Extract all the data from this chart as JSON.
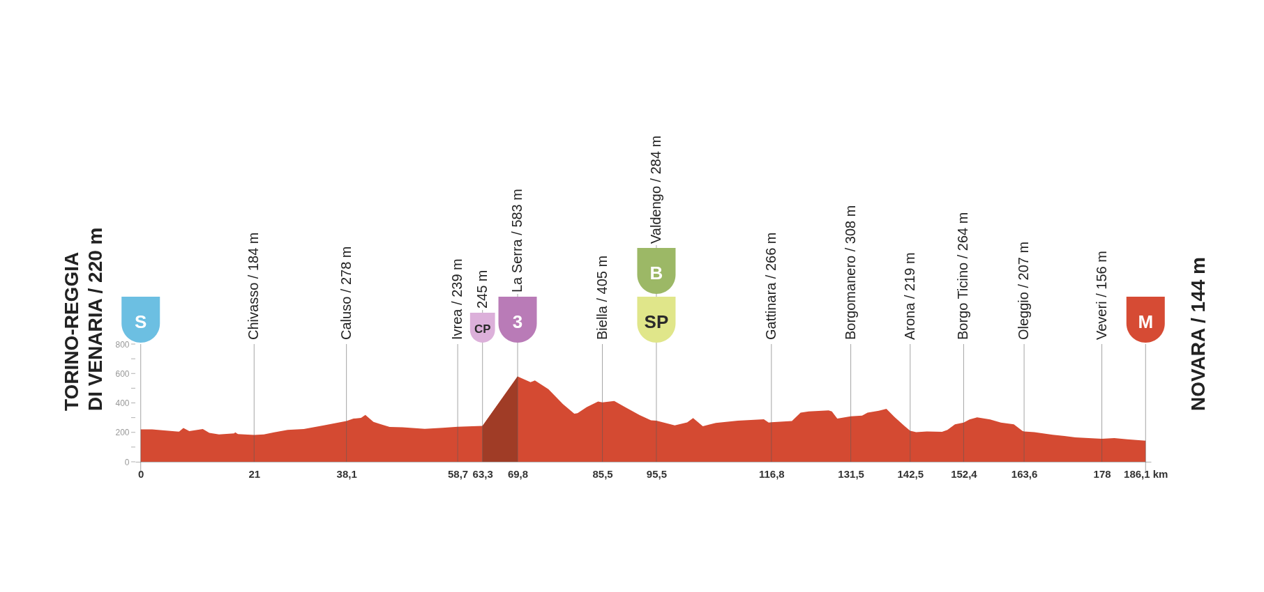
{
  "chart_data": {
    "type": "area",
    "x": [
      0,
      2.1,
      7.1,
      7.9,
      9.0,
      11.5,
      12.7,
      14.5,
      17.3,
      17.5,
      18.0,
      21,
      22.8,
      24.7,
      27.2,
      30.2,
      33.9,
      38.1,
      39.4,
      40.8,
      41.6,
      43.1,
      44.5,
      46.1,
      48.5,
      52.6,
      55.9,
      58.7,
      63.3,
      69.8,
      72.2,
      73.0,
      75.5,
      78.2,
      80.3,
      80.9,
      82.6,
      84.7,
      85.5,
      87.7,
      89.7,
      92.4,
      94.5,
      95.5,
      98.9,
      101.2,
      102.3,
      104.1,
      106.5,
      110.6,
      115.4,
      116.3,
      116.8,
      120.6,
      122.2,
      123.7,
      127.4,
      128.0,
      129.0,
      131.5,
      133.6,
      134.6,
      136.7,
      138.1,
      139.6,
      141.5,
      142.5,
      143.6,
      145.6,
      148.4,
      149.4,
      150.8,
      152.4,
      153.5,
      154.9,
      157.3,
      159.3,
      161.7,
      163.3,
      163.6,
      165.5,
      168.9,
      173.1,
      178,
      180.3,
      182.7,
      186.1
    ],
    "series": [
      {
        "color": "#d44a32",
        "values": [
          220,
          220,
          205,
          230,
          208,
          222,
          196,
          186,
          193,
          200,
          188,
          182,
          186,
          200,
          217,
          222,
          247,
          277,
          293,
          298,
          318,
          271,
          254,
          237,
          234,
          224,
          231,
          238,
          244,
          580,
          541,
          553,
          493,
          392,
          327,
          330,
          372,
          410,
          403,
          413,
          372,
          317,
          282,
          279,
          247,
          267,
          297,
          241,
          264,
          279,
          289,
          266,
          269,
          277,
          334,
          342,
          349,
          342,
          294,
          309,
          314,
          334,
          347,
          360,
          304,
          241,
          211,
          201,
          206,
          204,
          216,
          254,
          266,
          287,
          302,
          287,
          266,
          254,
          209,
          206,
          201,
          184,
          166,
          156,
          161,
          153,
          143
        ]
      },
      {
        "color": "#a03c26",
        "x": [
          63.3,
          69.8
        ],
        "values": [
          244,
          580
        ]
      }
    ],
    "xlim": [
      -1,
      187.1
    ],
    "xticks": [
      0,
      21,
      {
        "value": 38.1,
        "label": "38,1"
      },
      {
        "value": 58.7,
        "label": "58,7"
      },
      {
        "value": 63.3,
        "label": "63,3"
      },
      {
        "value": 69.8,
        "label": "69,8"
      },
      {
        "value": 85.5,
        "label": "85,5"
      },
      {
        "value": 95.5,
        "label": "95,5"
      },
      {
        "value": 116.8,
        "label": "116,8"
      },
      {
        "value": 131.5,
        "label": "131,5"
      },
      {
        "value": 142.5,
        "label": "142,5"
      },
      {
        "value": 152.4,
        "label": "152,4"
      },
      {
        "value": 163.6,
        "label": "163,6"
      },
      178,
      {
        "value": 186.1,
        "label": "186,1 km"
      }
    ],
    "ylim": [
      0,
      800
    ],
    "yticks": [
      0,
      {
        "value": 100,
        "label": null
      },
      200,
      {
        "value": 300,
        "label": null
      },
      400,
      {
        "value": 500,
        "label": null
      },
      600,
      {
        "value": 700,
        "label": null
      },
      800
    ],
    "ref_lines": [
      {
        "axis": "x",
        "value": 0,
        "label": "TORINO-REGGIA\nDI VENARIA / 220 m"
      },
      {
        "axis": "x",
        "value": 21,
        "label": "Chivasso / 184 m"
      },
      {
        "axis": "x",
        "value": 38.1,
        "label": "Caluso / 278 m"
      },
      {
        "axis": "x",
        "value": 58.7,
        "label": "Ivrea / 239 m"
      },
      {
        "axis": "x",
        "value": 63.3,
        "label": "245 m"
      },
      {
        "axis": "x",
        "value": 69.8,
        "label": "La Serra / 583 m"
      },
      {
        "axis": "x",
        "value": 85.5,
        "label": "Biella / 405 m"
      },
      {
        "axis": "x",
        "value": 95.5,
        "label": "Valdengo / 284 m"
      },
      {
        "axis": "x",
        "value": 116.8,
        "label": "Gattinara / 266 m"
      },
      {
        "axis": "x",
        "value": 131.5,
        "label": "Borgomanero / 308 m"
      },
      {
        "axis": "x",
        "value": 142.5,
        "label": "Arona / 219 m"
      },
      {
        "axis": "x",
        "value": 152.4,
        "label": "Borgo Ticino / 264 m"
      },
      {
        "axis": "x",
        "value": 163.6,
        "label": "Oleggio / 207 m"
      },
      {
        "axis": "x",
        "value": 178,
        "label": "Veveri / 156 m"
      },
      {
        "axis": "x",
        "value": 186.1,
        "label": "NOVARA / 144 m"
      }
    ],
    "annotations": [
      {
        "text": "S",
        "x": 0,
        "y": 800
      },
      {
        "text": "CP",
        "x": 63.3,
        "y": 800
      },
      {
        "text": "3",
        "x": 69.8,
        "y": 800
      },
      {
        "text": "SP",
        "x": 95.5,
        "y": 800
      },
      "B",
      {
        "text": "M",
        "x": 186.1,
        "y": 800
      }
    ]
  }
}
